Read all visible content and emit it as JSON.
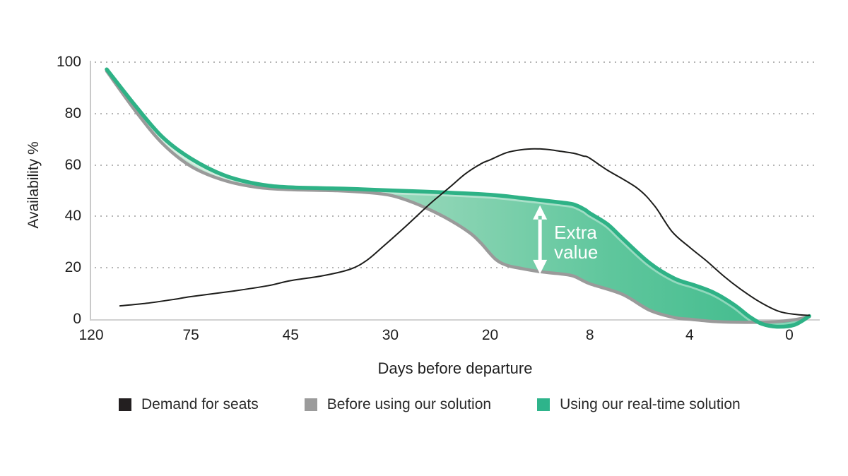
{
  "chart_data": {
    "type": "line",
    "title": "",
    "xlabel": "Days before departure",
    "ylabel": "Availability %",
    "x_ticks": [
      120,
      75,
      45,
      30,
      20,
      8,
      4,
      0
    ],
    "y_ticks": [
      100,
      80,
      60,
      40,
      20,
      0
    ],
    "ylim": [
      0,
      100
    ],
    "x_scale": "non-linear (ticks evenly spaced)",
    "grid": "dotted horizontal lines",
    "legend_position": "bottom",
    "series": [
      {
        "name": "Demand for seats",
        "color": "#1d1d1b",
        "stroke_width": 2,
        "points": [
          [
            107,
            5.2
          ],
          [
            95,
            6.2
          ],
          [
            82,
            7.8
          ],
          [
            75,
            8.8
          ],
          [
            62,
            11
          ],
          [
            52,
            13
          ],
          [
            45,
            15
          ],
          [
            40,
            17
          ],
          [
            36,
            19.5
          ],
          [
            33.5,
            23
          ],
          [
            31,
            28.5
          ],
          [
            28.5,
            36
          ],
          [
            26,
            45
          ],
          [
            24,
            51.5
          ],
          [
            22.5,
            56.5
          ],
          [
            20.9,
            60.5
          ],
          [
            20,
            62
          ],
          [
            18,
            64.8
          ],
          [
            16.3,
            65.9
          ],
          [
            14.7,
            66.3
          ],
          [
            13,
            66
          ],
          [
            11.5,
            65.3
          ],
          [
            10,
            64.6
          ],
          [
            8.8,
            63.5
          ],
          [
            8.1,
            62.8
          ],
          [
            7.3,
            58
          ],
          [
            6.1,
            51
          ],
          [
            5.4,
            44
          ],
          [
            4.7,
            34
          ],
          [
            4,
            28
          ],
          [
            3.3,
            22.5
          ],
          [
            2.6,
            16.5
          ],
          [
            2,
            12
          ],
          [
            1.2,
            6.8
          ],
          [
            0.4,
            3
          ],
          [
            -0.3,
            1.8
          ],
          [
            -0.8,
            1.5
          ]
        ]
      },
      {
        "name": "Before using our solution",
        "color": "#9a9a9a",
        "stroke_width": 4.5,
        "points": [
          [
            113,
            96.5
          ],
          [
            100,
            81
          ],
          [
            88,
            68.5
          ],
          [
            75,
            59.5
          ],
          [
            65,
            54
          ],
          [
            55,
            51.3
          ],
          [
            45,
            50.4
          ],
          [
            38,
            50
          ],
          [
            33,
            49.2
          ],
          [
            30,
            48.2
          ],
          [
            28,
            45.8
          ],
          [
            26,
            42.5
          ],
          [
            24,
            38.5
          ],
          [
            22,
            33.5
          ],
          [
            20.9,
            29.5
          ],
          [
            19.4,
            23.5
          ],
          [
            18,
            21
          ],
          [
            16,
            19.6
          ],
          [
            14,
            18.5
          ],
          [
            12,
            17.8
          ],
          [
            10,
            16.8
          ],
          [
            8,
            13.8
          ],
          [
            6.7,
            9.7
          ],
          [
            5.6,
            3.5
          ],
          [
            4.6,
            0.6
          ],
          [
            4,
            0
          ],
          [
            3,
            -0.9
          ],
          [
            1.8,
            -1.2
          ],
          [
            0.6,
            -1
          ],
          [
            -0.2,
            -0.2
          ],
          [
            -0.8,
            1
          ]
        ]
      },
      {
        "name": "Using our real-time solution",
        "color": "#2eb286",
        "stroke_width": 5.5,
        "points": [
          [
            113,
            97.2
          ],
          [
            100,
            83
          ],
          [
            88,
            71
          ],
          [
            75,
            62.5
          ],
          [
            65,
            56
          ],
          [
            55,
            52.6
          ],
          [
            45,
            51.3
          ],
          [
            37,
            50.8
          ],
          [
            30,
            50.1
          ],
          [
            25,
            49.4
          ],
          [
            20,
            48.4
          ],
          [
            16,
            47.1
          ],
          [
            12,
            45.6
          ],
          [
            10,
            44.7
          ],
          [
            8.6,
            42.6
          ],
          [
            8,
            41.2
          ],
          [
            7.3,
            37
          ],
          [
            6.7,
            31.5
          ],
          [
            5.6,
            21.8
          ],
          [
            4.6,
            15.8
          ],
          [
            3.8,
            13.2
          ],
          [
            3,
            10.2
          ],
          [
            2.2,
            5.5
          ],
          [
            1.6,
            1
          ],
          [
            1.1,
            -1.8
          ],
          [
            0.5,
            -2.9
          ],
          [
            -0.2,
            -2.2
          ],
          [
            -0.8,
            1.2
          ]
        ]
      }
    ],
    "fill_between": {
      "upper": "Using our real-time solution",
      "lower": "Before using our solution",
      "gradient": [
        "#cdead9",
        "#9bd9bc",
        "#5ec69c",
        "#3bb98a"
      ]
    },
    "annotation": {
      "label": "Extra\nvalue",
      "color": "#ffffff",
      "arrow_day": 14,
      "arrow_top_pct": 44.3,
      "arrow_bottom_pct": 17.6,
      "label_day": 12.3,
      "label_pct": 30
    }
  },
  "legend": {
    "items": [
      {
        "label": "Demand for seats",
        "color": "#231f20"
      },
      {
        "label": "Before using our solution",
        "color": "#9b9b9b"
      },
      {
        "label": "Using our real-time solution",
        "color": "#2eb48b"
      }
    ]
  },
  "colors": {
    "axis_line": "#cfcfcf",
    "grid_dots": "#b5b5b5",
    "tick_text": "#1f1f1f"
  }
}
